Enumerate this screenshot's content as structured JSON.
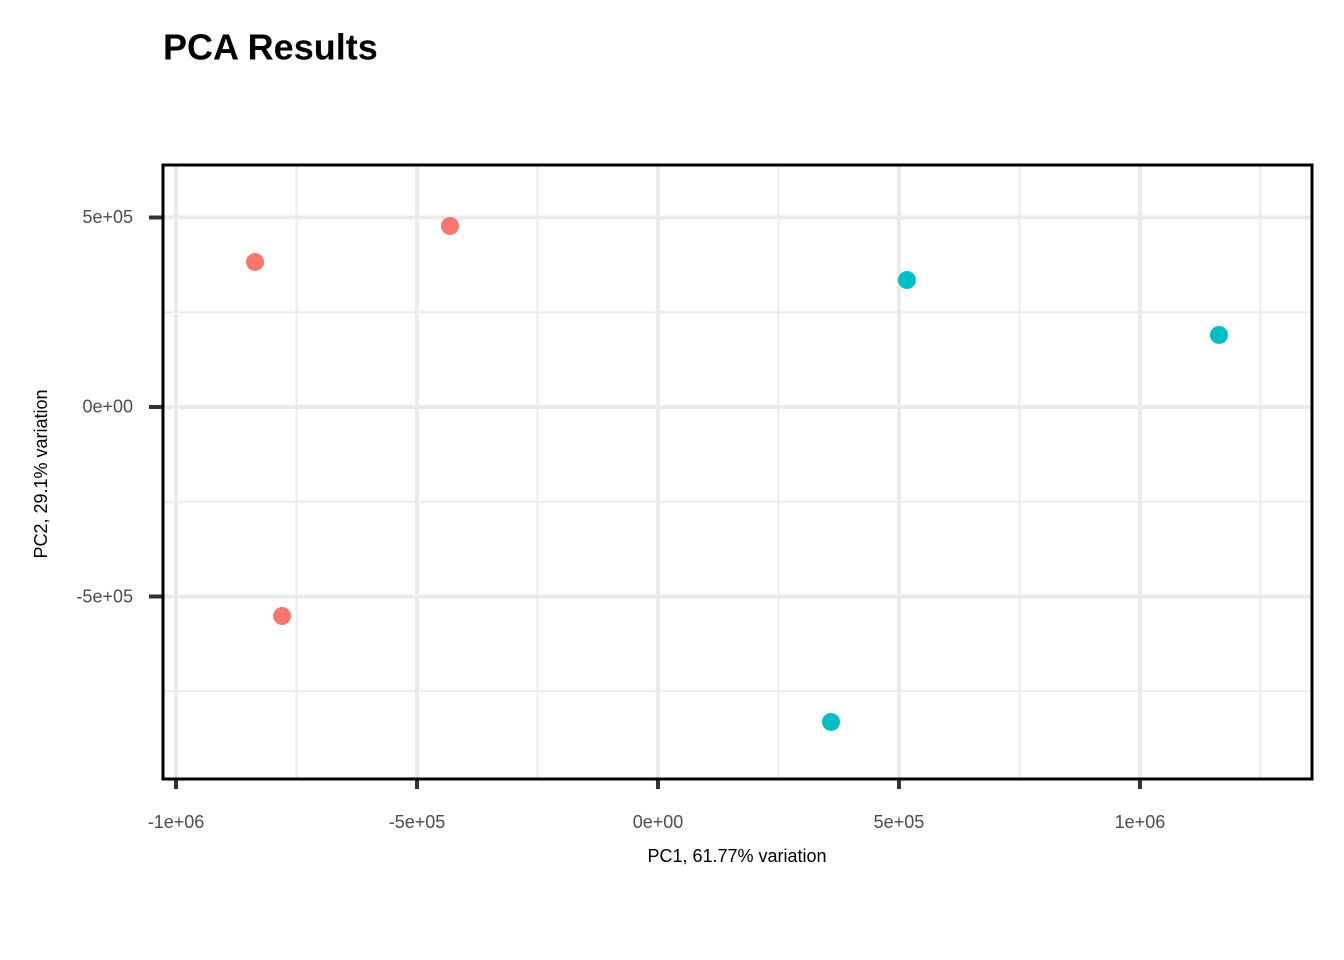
{
  "chart_data": {
    "type": "scatter",
    "title": "PCA Results",
    "x_label": "PC1, 61.77% variation",
    "y_label": "PC2, 29.1% variation",
    "series": [
      {
        "color": "#F8766D",
        "x": [
          -836000,
          -431500,
          -780000
        ],
        "y": [
          382600,
          477600,
          -551500
        ]
      },
      {
        "color": "#00BFC4",
        "x": [
          516600,
          1164000,
          359000
        ],
        "y": [
          335000,
          190000,
          -831000
        ]
      }
    ],
    "xlim": [
      -1027000,
      1357000
    ],
    "ylim": [
      -981500,
      638500
    ],
    "xticks": [
      {
        "value": -1000000,
        "label": "-1e+06"
      },
      {
        "value": -500000,
        "label": "-5e+05"
      },
      {
        "value": 0,
        "label": "0e+00"
      },
      {
        "value": 500000,
        "label": "5e+05"
      },
      {
        "value": 1000000,
        "label": "1e+06"
      }
    ],
    "yticks": [
      {
        "value": -500000,
        "label": "-5e+05"
      },
      {
        "value": 0,
        "label": "0e+00"
      },
      {
        "value": 500000,
        "label": "5e+05"
      }
    ],
    "grid": true
  }
}
